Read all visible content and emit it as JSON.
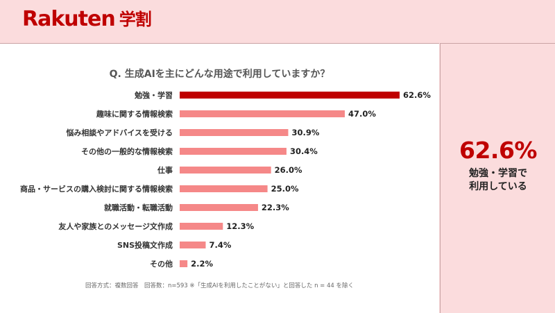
{
  "brand": {
    "logo": "Rakuten",
    "sub": "学割"
  },
  "question": "Q. 生成AIを主にどんな用途で利用していますか？",
  "highlight": {
    "value": "62.6%",
    "caption_line1": "勉強・学習で",
    "caption_line2": "利用している"
  },
  "footnote": "回答方式：複数回答　回答数：n=593 ※「生成AIを利用したことがない」と回答した n = 44 を除く",
  "colors": {
    "accent": "#bf0000",
    "bar": "#f58888",
    "side_bg": "#fbdcdd"
  },
  "chart_data": {
    "type": "bar",
    "orientation": "horizontal",
    "title": "Q. 生成AIを主にどんな用途で利用していますか？",
    "categories": [
      "勉強・学習",
      "趣味に関する情報検索",
      "悩み相談やアドバイスを受ける",
      "その他の一般的な情報検索",
      "仕事",
      "商品・サービスの購入検討に関する情報検索",
      "就職活動・転職活動",
      "友人や家族とのメッセージ文作成",
      "SNS投稿文作成",
      "その他"
    ],
    "values": [
      62.6,
      47.0,
      30.9,
      30.4,
      26.0,
      25.0,
      22.3,
      12.3,
      7.4,
      2.2
    ],
    "value_labels": [
      "62.6%",
      "47.0%",
      "30.9%",
      "30.4%",
      "26.0%",
      "25.0%",
      "22.3%",
      "12.3%",
      "7.4%",
      "2.2%"
    ],
    "highlight_index": 0,
    "xlim": [
      0,
      62.6
    ],
    "grid": false,
    "legend": "none"
  }
}
